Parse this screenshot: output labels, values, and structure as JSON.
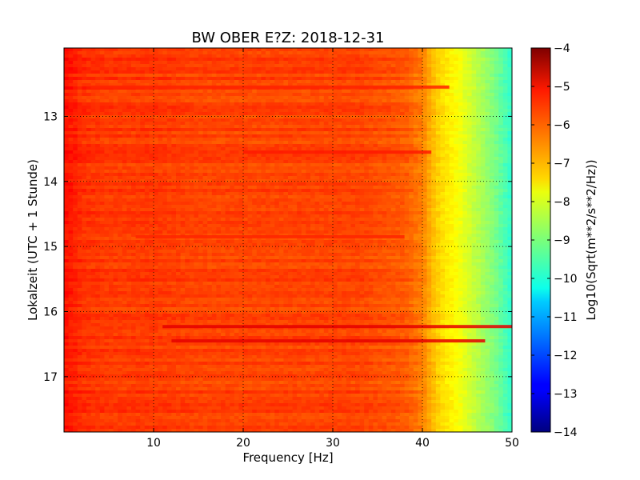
{
  "chart_data": {
    "type": "heatmap",
    "title": "BW OBER E?Z: 2018-12-31",
    "xlabel": "Frequency [Hz]",
    "ylabel": "Lokalzeit (UTC + 1 Stunde)",
    "xlim": [
      0,
      50
    ],
    "ylim": [
      17.85,
      11.95
    ],
    "y_inverted": true,
    "xticks": [
      10,
      20,
      30,
      40,
      50
    ],
    "yticks": [
      13,
      14,
      15,
      16,
      17
    ],
    "grid": true,
    "colorbar": {
      "label": "Log10(Sqrt(m**2/s**2/Hz))",
      "range": [
        -14,
        -4
      ],
      "ticks": [
        -4,
        -5,
        -6,
        -7,
        -8,
        -9,
        -10,
        -11,
        -12,
        -13,
        -14
      ],
      "colormap": "jet"
    },
    "frequency_profile": {
      "x": [
        0,
        1,
        2,
        5,
        10,
        15,
        20,
        25,
        30,
        33,
        35,
        38,
        40,
        41,
        42,
        44,
        46,
        48,
        50
      ],
      "values": [
        -5.4,
        -5.5,
        -5.7,
        -5.8,
        -5.8,
        -5.9,
        -5.9,
        -5.9,
        -5.9,
        -5.9,
        -6.0,
        -6.1,
        -6.5,
        -7.0,
        -7.4,
        -7.8,
        -8.4,
        -9.0,
        -9.8
      ]
    },
    "high_power_bands": [
      {
        "time": 16.23,
        "x_start": 11,
        "x_end": 50,
        "value": -5.0
      },
      {
        "time": 16.45,
        "x_start": 12,
        "x_end": 47,
        "value": -5.0
      },
      {
        "time": 13.55,
        "x_start": 20,
        "x_end": 41,
        "value": -5.5
      },
      {
        "time": 14.85,
        "x_start": 8,
        "x_end": 38,
        "value": -5.6
      },
      {
        "time": 12.55,
        "x_start": 3,
        "x_end": 43,
        "value": -5.6
      }
    ]
  }
}
